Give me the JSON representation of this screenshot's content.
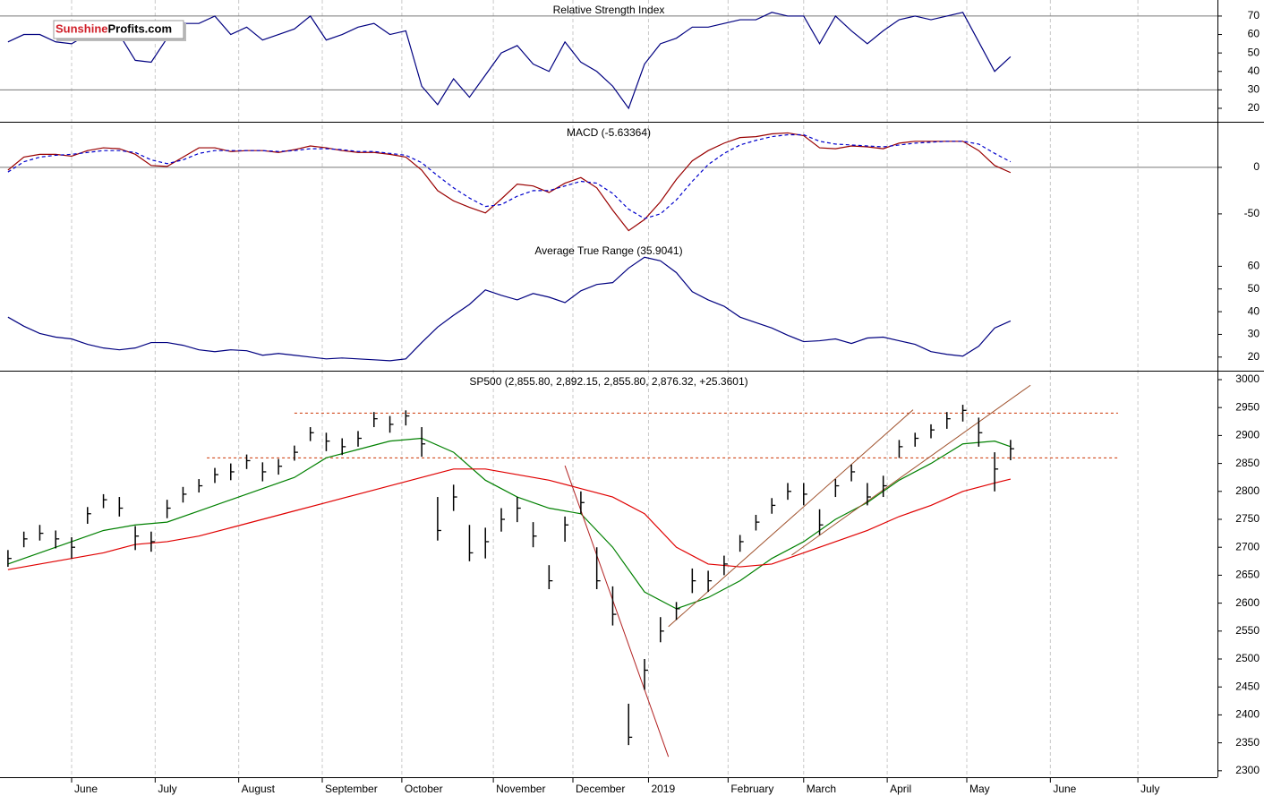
{
  "watermark": {
    "brand": "Sunshine",
    "domain": "Profits.com"
  },
  "chart_data": [
    {
      "type": "line",
      "title": "Relative Strength Index",
      "x": [
        2,
        6,
        10,
        14,
        18,
        22,
        26,
        30,
        34,
        38,
        42,
        46,
        50,
        54,
        58,
        62,
        66,
        70,
        74,
        78,
        82,
        86,
        90,
        94,
        98,
        102,
        106,
        110,
        114,
        118,
        122,
        126,
        130,
        134,
        138,
        142,
        146,
        150,
        154,
        158,
        162,
        166,
        170,
        174,
        178,
        182,
        186,
        190,
        194,
        198,
        202,
        206,
        210,
        214,
        218,
        222,
        226,
        230,
        234,
        238,
        242,
        246,
        250,
        254
      ],
      "xlim": [
        0,
        306
      ],
      "series": [
        {
          "color": "#000080",
          "values": [
            56,
            60,
            60,
            56,
            55,
            60,
            65,
            60,
            46,
            45,
            58,
            66,
            66,
            70,
            60,
            64,
            57,
            60,
            63,
            70,
            57,
            60,
            64,
            66,
            60,
            62,
            32,
            22,
            36,
            26,
            38,
            50,
            54,
            44,
            40,
            56,
            45,
            40,
            32,
            20,
            44,
            55,
            58,
            64,
            64,
            66,
            68,
            68,
            72,
            70,
            70,
            55,
            70,
            62,
            55,
            62,
            68,
            70,
            68,
            70,
            72,
            56,
            40,
            48
          ]
        }
      ],
      "ylim": [
        12.7,
        78.7
      ],
      "yticks": [
        20,
        30,
        40,
        50,
        60,
        70
      ],
      "levels": [
        30,
        70
      ]
    },
    {
      "type": "line",
      "title": "MACD (-5.63364)",
      "x": [
        2,
        6,
        10,
        14,
        18,
        22,
        26,
        30,
        34,
        38,
        42,
        46,
        50,
        54,
        58,
        62,
        66,
        70,
        74,
        78,
        82,
        86,
        90,
        94,
        98,
        102,
        106,
        110,
        114,
        118,
        122,
        126,
        130,
        134,
        138,
        142,
        146,
        150,
        154,
        158,
        162,
        166,
        170,
        174,
        178,
        182,
        186,
        190,
        194,
        198,
        202,
        206,
        210,
        214,
        218,
        222,
        226,
        230,
        234,
        238,
        242,
        246,
        250,
        254
      ],
      "xlim": [
        0,
        306
      ],
      "series": [
        {
          "color": "#990000",
          "values": [
            -3,
            11,
            14,
            14,
            12,
            18,
            21,
            20,
            14,
            2,
            1,
            11,
            21,
            21,
            17,
            18,
            18,
            16,
            19,
            23,
            21,
            18,
            16,
            16,
            14,
            11,
            -3,
            -25,
            -36,
            -43,
            -49,
            -34,
            -18,
            -20,
            -27,
            -17,
            -11,
            -22,
            -46,
            -68,
            -56,
            -37,
            -13,
            7,
            18,
            26,
            32,
            33,
            36,
            37,
            34,
            21,
            20,
            23,
            22,
            20,
            26,
            28,
            28,
            28,
            28,
            18,
            2,
            -5.63364
          ]
        },
        {
          "color": "#0000cc",
          "dash": true,
          "values": [
            -5,
            6,
            11,
            13,
            14,
            16,
            18,
            18,
            16,
            8,
            4,
            8,
            15,
            18,
            18,
            18,
            18,
            17,
            18,
            20,
            20,
            19,
            17,
            17,
            15,
            13,
            5,
            -9,
            -22,
            -33,
            -42,
            -40,
            -31,
            -25,
            -25,
            -20,
            -15,
            -17,
            -28,
            -45,
            -55,
            -50,
            -35,
            -15,
            3,
            15,
            24,
            29,
            33,
            35,
            35,
            28,
            25,
            24,
            23,
            22,
            24,
            26,
            27,
            28,
            28,
            25,
            15,
            6
          ]
        }
      ],
      "ylim": [
        -78,
        48
      ],
      "yticks": [
        -50,
        0
      ],
      "levels": [
        0
      ]
    },
    {
      "type": "line",
      "title": "Average True Range (35.9041)",
      "x": [
        2,
        6,
        10,
        14,
        18,
        22,
        26,
        30,
        34,
        38,
        42,
        46,
        50,
        54,
        58,
        62,
        66,
        70,
        74,
        78,
        82,
        86,
        90,
        94,
        98,
        102,
        106,
        110,
        114,
        118,
        122,
        126,
        130,
        134,
        138,
        142,
        146,
        150,
        154,
        158,
        162,
        166,
        170,
        174,
        178,
        182,
        186,
        190,
        194,
        198,
        202,
        206,
        210,
        214,
        218,
        222,
        226,
        230,
        234,
        238,
        242,
        246,
        250,
        254
      ],
      "xlim": [
        0,
        306
      ],
      "series": [
        {
          "color": "#000080",
          "values": [
            37.6,
            33.6,
            30.4,
            28.8,
            28,
            25.6,
            24,
            23.2,
            24,
            26.4,
            26.4,
            25.2,
            23.2,
            22.4,
            23.2,
            22.8,
            20.8,
            21.6,
            20.8,
            20,
            19.2,
            19.6,
            19.2,
            18.8,
            18.4,
            19.2,
            26.4,
            33.2,
            38.4,
            43.2,
            49.6,
            47.2,
            45.2,
            48,
            46.4,
            44,
            49.2,
            52,
            52.8,
            59.2,
            64,
            62.4,
            57.2,
            48.8,
            45.2,
            42.4,
            37.6,
            35.2,
            32.8,
            29.6,
            26.8,
            27.2,
            28,
            26,
            28.4,
            28.8,
            27.2,
            25.6,
            22.4,
            21.2,
            20.4,
            24.8,
            32.8,
            35.9041
          ]
        }
      ],
      "ylim": [
        14,
        71.2
      ],
      "yticks": [
        20,
        30,
        40,
        50,
        60
      ]
    },
    {
      "type": "ohlc",
      "title": "SP500 (2,855.80, 2,892.15, 2,855.80, 2,876.32, +25.3601)",
      "x": [
        2,
        6,
        10,
        14,
        18,
        22,
        26,
        30,
        34,
        38,
        42,
        46,
        50,
        54,
        58,
        62,
        66,
        70,
        74,
        78,
        82,
        86,
        90,
        94,
        98,
        102,
        106,
        110,
        114,
        118,
        122,
        126,
        130,
        134,
        138,
        142,
        146,
        150,
        154,
        158,
        162,
        166,
        170,
        174,
        178,
        182,
        186,
        190,
        194,
        198,
        202,
        206,
        210,
        214,
        218,
        222,
        226,
        230,
        234,
        238,
        242,
        246,
        250,
        254
      ],
      "xlim": [
        0,
        306
      ],
      "color": "#000000",
      "high": [
        2695,
        2728,
        2740,
        2730,
        2718,
        2772,
        2795,
        2790,
        2738,
        2728,
        2785,
        2808,
        2822,
        2842,
        2850,
        2866,
        2852,
        2858,
        2882,
        2915,
        2905,
        2895,
        2908,
        2942,
        2935,
        2945,
        2915,
        2790,
        2812,
        2740,
        2735,
        2770,
        2790,
        2745,
        2668,
        2755,
        2800,
        2700,
        2630,
        2420,
        2500,
        2575,
        2602,
        2662,
        2658,
        2685,
        2722,
        2758,
        2788,
        2815,
        2815,
        2768,
        2822,
        2848,
        2815,
        2828,
        2892,
        2905,
        2920,
        2942,
        2955,
        2932,
        2870,
        2892.15
      ],
      "low": [
        2665,
        2700,
        2712,
        2698,
        2680,
        2742,
        2770,
        2755,
        2695,
        2692,
        2752,
        2780,
        2798,
        2815,
        2820,
        2840,
        2818,
        2830,
        2855,
        2890,
        2872,
        2865,
        2880,
        2915,
        2905,
        2918,
        2862,
        2712,
        2765,
        2675,
        2680,
        2728,
        2745,
        2700,
        2625,
        2710,
        2760,
        2625,
        2560,
        2346,
        2445,
        2530,
        2570,
        2618,
        2620,
        2650,
        2692,
        2730,
        2760,
        2785,
        2775,
        2722,
        2790,
        2818,
        2775,
        2790,
        2860,
        2880,
        2895,
        2912,
        2925,
        2880,
        2800,
        2855.8
      ],
      "close": [
        2680,
        2715,
        2725,
        2715,
        2700,
        2760,
        2785,
        2770,
        2720,
        2710,
        2770,
        2795,
        2810,
        2830,
        2835,
        2855,
        2835,
        2845,
        2870,
        2905,
        2890,
        2880,
        2895,
        2930,
        2920,
        2935,
        2885,
        2730,
        2790,
        2690,
        2710,
        2750,
        2770,
        2720,
        2640,
        2740,
        2780,
        2640,
        2580,
        2360,
        2480,
        2550,
        2590,
        2640,
        2640,
        2670,
        2710,
        2745,
        2775,
        2800,
        2795,
        2740,
        2810,
        2835,
        2790,
        2810,
        2880,
        2895,
        2910,
        2930,
        2945,
        2905,
        2840,
        2876.32
      ],
      "overlays": [
        {
          "color": "#008000",
          "x": [
            2,
            10,
            18,
            26,
            34,
            42,
            50,
            58,
            66,
            74,
            82,
            90,
            98,
            106,
            114,
            122,
            130,
            138,
            146,
            154,
            162,
            170,
            178,
            186,
            194,
            202,
            210,
            218,
            226,
            234,
            242,
            250,
            254
          ],
          "values": [
            2670,
            2690,
            2710,
            2730,
            2740,
            2745,
            2765,
            2785,
            2805,
            2825,
            2860,
            2875,
            2890,
            2895,
            2870,
            2820,
            2790,
            2770,
            2760,
            2700,
            2620,
            2590,
            2610,
            2640,
            2680,
            2710,
            2750,
            2780,
            2820,
            2850,
            2885,
            2890,
            2880
          ]
        },
        {
          "color": "#e00000",
          "x": [
            2,
            10,
            18,
            26,
            34,
            42,
            50,
            58,
            66,
            74,
            82,
            90,
            98,
            106,
            114,
            122,
            130,
            138,
            146,
            154,
            162,
            170,
            178,
            186,
            194,
            202,
            210,
            218,
            226,
            234,
            242,
            250,
            254
          ],
          "values": [
            2660,
            2670,
            2680,
            2690,
            2705,
            2710,
            2720,
            2735,
            2750,
            2765,
            2780,
            2795,
            2810,
            2825,
            2840,
            2840,
            2830,
            2820,
            2805,
            2790,
            2760,
            2700,
            2670,
            2665,
            2670,
            2690,
            2710,
            2730,
            2755,
            2775,
            2800,
            2815,
            2822
          ]
        }
      ],
      "hlines": [
        {
          "value": 2940,
          "from": 74,
          "to": 281,
          "color": "#cc3300"
        },
        {
          "value": 2860,
          "from": 52,
          "to": 281,
          "color": "#cc3300"
        }
      ],
      "trendlines": [
        {
          "x": [
            142,
            168
          ],
          "y": [
            2846,
            2325
          ],
          "color": "#b22222"
        },
        {
          "x": [
            168,
            229.5
          ],
          "y": [
            2558,
            2946
          ],
          "color": "#a0522d"
        },
        {
          "x": [
            199,
            259
          ],
          "y": [
            2686,
            2990
          ],
          "color": "#a0522d"
        }
      ],
      "ylim": [
        2288.5,
        3014.4
      ],
      "yticks": [
        2300,
        2350,
        2400,
        2450,
        2500,
        2550,
        2600,
        2650,
        2700,
        2750,
        2800,
        2850,
        2900,
        2950,
        3000
      ],
      "xticks": [
        {
          "value": 18,
          "label": "June"
        },
        {
          "value": 39,
          "label": "July"
        },
        {
          "value": 60,
          "label": "August"
        },
        {
          "value": 81,
          "label": "September"
        },
        {
          "value": 101,
          "label": "October"
        },
        {
          "value": 124,
          "label": "November"
        },
        {
          "value": 144,
          "label": "December"
        },
        {
          "value": 163,
          "label": "2019"
        },
        {
          "value": 183,
          "label": "February"
        },
        {
          "value": 202,
          "label": "March"
        },
        {
          "value": 223,
          "label": "April"
        },
        {
          "value": 243,
          "label": "May"
        },
        {
          "value": 264,
          "label": "June"
        },
        {
          "value": 286,
          "label": "July"
        }
      ]
    }
  ]
}
